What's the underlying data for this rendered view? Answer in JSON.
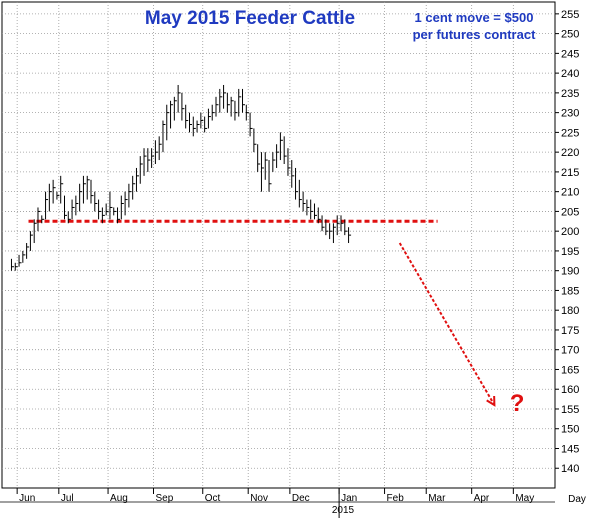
{
  "chart_data": {
    "type": "bar",
    "subtype": "ohlc",
    "title": "May 2015 Feeder Cattle",
    "annotation": [
      "1 cent move = $500",
      "per futures contract"
    ],
    "xlabel": "Day",
    "year_label": "2015",
    "ylim": [
      135,
      258
    ],
    "y_ticks": [
      140,
      145,
      150,
      155,
      160,
      165,
      170,
      175,
      180,
      185,
      190,
      195,
      200,
      205,
      210,
      215,
      220,
      225,
      230,
      235,
      240,
      245,
      250,
      255
    ],
    "month_ticks": [
      {
        "label": "Jun",
        "index": 2
      },
      {
        "label": "Jul",
        "index": 13
      },
      {
        "label": "Aug",
        "index": 26
      },
      {
        "label": "Sep",
        "index": 38
      },
      {
        "label": "Oct",
        "index": 51
      },
      {
        "label": "Nov",
        "index": 63
      },
      {
        "label": "Dec",
        "index": 74
      },
      {
        "label": "Jan",
        "index": 87
      },
      {
        "label": "Feb",
        "index": 99
      },
      {
        "label": "Mar",
        "index": 110
      },
      {
        "label": "Apr",
        "index": 122
      },
      {
        "label": "May",
        "index": 133
      }
    ],
    "x_index_range": [
      -2,
      144
    ],
    "support_level": 202.5,
    "support_range": [
      5,
      113
    ],
    "projection": {
      "from": [
        103,
        197
      ],
      "to": [
        128,
        156
      ]
    },
    "question_mark": {
      "text": "?",
      "at": [
        134,
        156
      ]
    },
    "bars": [
      [
        190,
        193,
        191
      ],
      [
        190,
        192,
        191
      ],
      [
        191,
        194,
        192
      ],
      [
        192,
        195,
        194
      ],
      [
        193,
        197,
        196
      ],
      [
        195,
        200,
        199
      ],
      [
        197,
        203,
        202
      ],
      [
        200,
        206,
        205
      ],
      [
        202,
        204,
        203
      ],
      [
        203,
        210,
        208
      ],
      [
        205,
        212,
        210
      ],
      [
        207,
        213,
        211
      ],
      [
        208,
        210,
        209
      ],
      [
        207,
        214,
        212
      ],
      [
        203,
        209,
        204
      ],
      [
        202,
        205,
        203
      ],
      [
        203,
        208,
        206
      ],
      [
        204,
        209,
        207
      ],
      [
        205,
        212,
        210
      ],
      [
        207,
        214,
        212
      ],
      [
        208,
        214,
        213
      ],
      [
        207,
        213,
        209
      ],
      [
        205,
        210,
        207
      ],
      [
        203,
        208,
        205
      ],
      [
        202,
        206,
        204
      ],
      [
        204,
        207,
        205
      ],
      [
        203,
        210,
        206
      ],
      [
        204,
        206,
        205
      ],
      [
        202,
        206,
        203
      ],
      [
        203,
        209,
        207
      ],
      [
        204,
        210,
        208
      ],
      [
        206,
        212,
        210
      ],
      [
        208,
        214,
        212
      ],
      [
        210,
        216,
        214
      ],
      [
        212,
        219,
        217
      ],
      [
        214,
        221,
        219
      ],
      [
        215,
        221,
        218
      ],
      [
        216,
        221,
        219
      ],
      [
        217,
        223,
        220
      ],
      [
        218,
        224,
        222
      ],
      [
        220,
        228,
        227
      ],
      [
        223,
        232,
        230
      ],
      [
        226,
        233,
        232
      ],
      [
        228,
        234,
        233
      ],
      [
        230,
        237,
        235
      ],
      [
        228,
        235,
        231
      ],
      [
        226,
        232,
        228
      ],
      [
        225,
        230,
        227
      ],
      [
        224,
        229,
        226
      ],
      [
        225,
        228,
        227
      ],
      [
        226,
        230,
        228
      ],
      [
        225,
        229,
        226
      ],
      [
        226,
        231,
        229
      ],
      [
        228,
        232,
        230
      ],
      [
        229,
        234,
        232
      ],
      [
        230,
        236,
        234
      ],
      [
        231,
        237,
        235
      ],
      [
        230,
        235,
        232
      ],
      [
        229,
        234,
        233
      ],
      [
        228,
        233,
        230
      ],
      [
        229,
        236,
        234
      ],
      [
        230,
        236,
        232
      ],
      [
        228,
        232,
        230
      ],
      [
        224,
        230,
        226
      ],
      [
        220,
        226,
        222
      ],
      [
        215,
        222,
        217
      ],
      [
        210,
        220,
        216
      ],
      [
        213,
        220,
        218
      ],
      [
        210,
        218,
        212
      ],
      [
        215,
        220,
        218
      ],
      [
        216,
        222,
        220
      ],
      [
        218,
        225,
        223
      ],
      [
        217,
        224,
        219
      ],
      [
        214,
        221,
        216
      ],
      [
        211,
        218,
        214
      ],
      [
        208,
        216,
        210
      ],
      [
        206,
        213,
        208
      ],
      [
        205,
        210,
        207
      ],
      [
        204,
        208,
        206
      ],
      [
        203,
        208,
        205
      ],
      [
        203,
        207,
        204
      ],
      [
        202,
        206,
        203
      ],
      [
        200,
        204,
        201
      ],
      [
        199,
        203,
        200
      ],
      [
        198,
        202,
        200
      ],
      [
        197,
        202,
        201
      ],
      [
        199,
        204,
        202
      ],
      [
        200,
        204,
        202
      ],
      [
        199,
        203,
        200
      ],
      [
        197,
        201,
        199
      ]
    ]
  }
}
